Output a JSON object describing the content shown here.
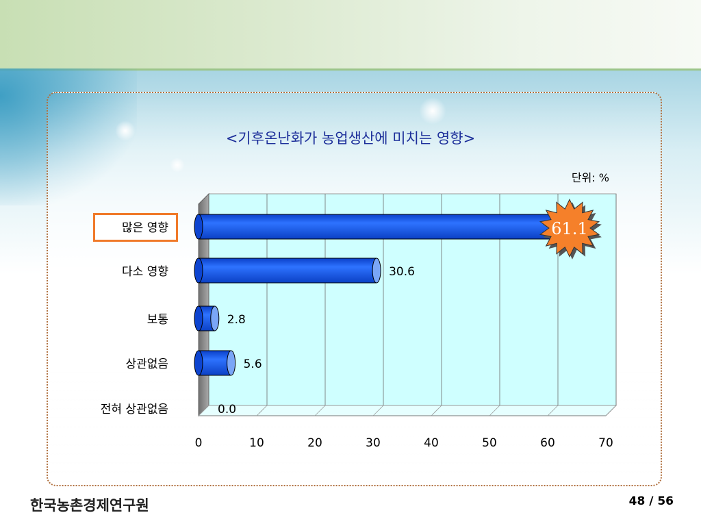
{
  "footer": {
    "organization": "한국농촌경제연구원",
    "page_indicator": "48 / 56"
  },
  "colors": {
    "bar_fill": "#1f63f0",
    "bar_cap": "#7aa6f7",
    "plot_bg": "#cfffff",
    "highlight_border": "#f07a2a",
    "burst_fill": "#f5802a",
    "title_color": "#1d2f9a"
  },
  "chart_data": {
    "type": "bar",
    "orientation": "horizontal",
    "title": "<기후온난화가 농업생산에 미치는 영향>",
    "unit_label": "단위: %",
    "categories": [
      "많은 영향",
      "다소 영향",
      "보통",
      "상관없음",
      "전혀 상관없음"
    ],
    "values": [
      61.1,
      30.6,
      2.8,
      5.6,
      0.0
    ],
    "value_labels": [
      "61.1",
      "30.6",
      "2.8",
      "5.6",
      "0.0"
    ],
    "highlighted_category": "많은 영향",
    "xlim": [
      0,
      70
    ],
    "x_ticks": [
      "0",
      "10",
      "20",
      "30",
      "40",
      "50",
      "60",
      "70"
    ],
    "grid": true,
    "legend": "none"
  }
}
